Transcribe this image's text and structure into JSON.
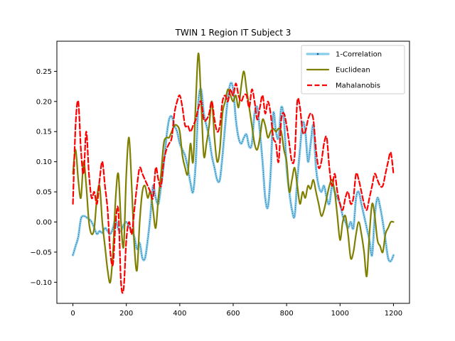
{
  "chart_data": {
    "type": "line",
    "title": "TWIN 1 Region IT Subject 3",
    "xlabel": "",
    "ylabel": "",
    "xlim": [
      -60,
      1260
    ],
    "ylim": [
      -0.135,
      0.3
    ],
    "xticks": [
      0,
      200,
      400,
      600,
      800,
      1000,
      1200
    ],
    "yticks": [
      -0.1,
      -0.05,
      0.0,
      0.05,
      0.1,
      0.15,
      0.2,
      0.25
    ],
    "xtick_labels": [
      "0",
      "200",
      "400",
      "600",
      "800",
      "1000",
      "1200"
    ],
    "ytick_labels": [
      "−0.10",
      "−0.05",
      "0.00",
      "0.05",
      "0.10",
      "0.15",
      "0.20",
      "0.25"
    ],
    "grid": false,
    "legend": "top-right",
    "series": [
      {
        "name": "1-Correlation",
        "color": "#87ceeb",
        "style": "solid-with-markers",
        "x": [
          0,
          10,
          20,
          30,
          40,
          50,
          60,
          70,
          80,
          90,
          100,
          110,
          120,
          130,
          140,
          150,
          160,
          170,
          180,
          190,
          200,
          210,
          220,
          230,
          240,
          250,
          260,
          270,
          280,
          290,
          300,
          310,
          320,
          330,
          340,
          350,
          360,
          370,
          380,
          390,
          400,
          410,
          420,
          430,
          440,
          450,
          460,
          470,
          480,
          490,
          500,
          510,
          520,
          530,
          540,
          550,
          560,
          570,
          580,
          590,
          600,
          610,
          620,
          630,
          640,
          650,
          660,
          670,
          680,
          690,
          700,
          710,
          720,
          730,
          740,
          750,
          760,
          770,
          780,
          790,
          800,
          810,
          820,
          830,
          840,
          850,
          860,
          870,
          880,
          890,
          900,
          910,
          920,
          930,
          940,
          950,
          960,
          970,
          980,
          990,
          1000,
          1010,
          1020,
          1030,
          1040,
          1050,
          1060,
          1070,
          1080,
          1090,
          1100,
          1110,
          1120,
          1130,
          1140,
          1150,
          1160,
          1170,
          1180,
          1190,
          1200
        ],
        "y": [
          -0.055,
          -0.04,
          -0.025,
          0.005,
          0.01,
          0.008,
          0.005,
          0.0,
          -0.01,
          -0.02,
          -0.015,
          -0.018,
          -0.01,
          -0.015,
          -0.02,
          -0.01,
          0.005,
          -0.012,
          -0.015,
          -0.005,
          0.0,
          -0.008,
          -0.015,
          -0.025,
          -0.045,
          -0.035,
          -0.06,
          -0.06,
          -0.03,
          0.01,
          0.06,
          0.04,
          0.03,
          0.06,
          0.095,
          0.14,
          0.17,
          0.175,
          0.16,
          0.15,
          0.13,
          0.12,
          0.11,
          0.09,
          0.065,
          0.05,
          0.1,
          0.2,
          0.22,
          0.18,
          0.16,
          0.14,
          0.11,
          0.09,
          0.07,
          0.07,
          0.11,
          0.16,
          0.205,
          0.23,
          0.22,
          0.17,
          0.14,
          0.13,
          0.14,
          0.145,
          0.125,
          0.13,
          0.18,
          0.19,
          0.15,
          0.1,
          0.04,
          0.025,
          0.08,
          0.18,
          0.15,
          0.14,
          0.19,
          0.17,
          0.09,
          0.05,
          0.02,
          0.01,
          0.07,
          0.12,
          0.165,
          0.15,
          0.1,
          0.13,
          0.16,
          0.09,
          0.06,
          0.05,
          0.06,
          0.04,
          0.03,
          0.06,
          0.05,
          0.04,
          0.03,
          0.01,
          0.0,
          -0.01,
          0.0,
          -0.01,
          0.04,
          0.05,
          0.03,
          0.01,
          -0.01,
          -0.03,
          -0.055,
          0.01,
          0.04,
          0.025,
          0.0,
          -0.03,
          -0.06,
          -0.065,
          -0.055
        ]
      },
      {
        "name": "Euclidean",
        "color": "#808000",
        "style": "solid",
        "x": [
          0,
          10,
          20,
          30,
          40,
          50,
          60,
          70,
          80,
          90,
          100,
          110,
          120,
          130,
          140,
          150,
          160,
          170,
          180,
          190,
          200,
          210,
          220,
          230,
          240,
          250,
          260,
          270,
          280,
          290,
          300,
          310,
          320,
          330,
          340,
          350,
          360,
          370,
          380,
          390,
          400,
          410,
          420,
          430,
          440,
          450,
          460,
          470,
          480,
          490,
          500,
          510,
          520,
          530,
          540,
          550,
          560,
          570,
          580,
          590,
          600,
          610,
          620,
          630,
          640,
          650,
          660,
          670,
          680,
          690,
          700,
          710,
          720,
          730,
          740,
          750,
          760,
          770,
          780,
          790,
          800,
          810,
          820,
          830,
          840,
          850,
          860,
          870,
          880,
          890,
          900,
          910,
          920,
          930,
          940,
          950,
          960,
          970,
          980,
          990,
          1000,
          1010,
          1020,
          1030,
          1040,
          1050,
          1060,
          1070,
          1080,
          1090,
          1100,
          1110,
          1120,
          1130,
          1140,
          1150,
          1160,
          1170,
          1180,
          1190,
          1200
        ],
        "y": [
          0.08,
          0.12,
          0.07,
          0.04,
          0.1,
          0.06,
          0.0,
          -0.02,
          -0.01,
          0.04,
          0.06,
          0.0,
          -0.04,
          -0.08,
          -0.1,
          -0.05,
          0.04,
          0.08,
          0.0,
          -0.04,
          0.08,
          0.14,
          0.06,
          -0.04,
          -0.08,
          0.0,
          0.05,
          0.06,
          0.04,
          0.05,
          0.02,
          -0.01,
          0.04,
          0.08,
          0.13,
          0.14,
          0.14,
          0.15,
          0.16,
          0.16,
          0.15,
          0.11,
          0.09,
          0.08,
          0.13,
          0.1,
          0.2,
          0.28,
          0.2,
          0.11,
          0.13,
          0.16,
          0.2,
          0.14,
          0.1,
          0.12,
          0.18,
          0.2,
          0.22,
          0.21,
          0.2,
          0.21,
          0.19,
          0.225,
          0.25,
          0.22,
          0.19,
          0.16,
          0.13,
          0.12,
          0.14,
          0.17,
          0.16,
          0.14,
          0.15,
          0.155,
          0.15,
          0.155,
          0.15,
          0.12,
          0.1,
          0.05,
          0.07,
          0.09,
          0.06,
          0.03,
          0.05,
          0.04,
          0.06,
          0.055,
          0.07,
          0.05,
          0.03,
          0.01,
          0.02,
          0.04,
          0.06,
          0.07,
          0.05,
          0.01,
          -0.03,
          0.0,
          0.01,
          -0.02,
          -0.06,
          -0.05,
          -0.02,
          0.0,
          -0.02,
          -0.05,
          -0.09,
          -0.02,
          0.03,
          0.01,
          -0.03,
          -0.04,
          -0.05,
          -0.02,
          -0.01,
          0.0,
          0.0
        ]
      },
      {
        "name": "Mahalanobis",
        "color": "#ff0000",
        "style": "dashed",
        "x": [
          0,
          10,
          20,
          30,
          40,
          50,
          60,
          70,
          80,
          90,
          100,
          110,
          120,
          130,
          140,
          150,
          160,
          170,
          180,
          190,
          200,
          210,
          220,
          230,
          240,
          250,
          260,
          270,
          280,
          290,
          300,
          310,
          320,
          330,
          340,
          350,
          360,
          370,
          380,
          390,
          400,
          410,
          420,
          430,
          440,
          450,
          460,
          470,
          480,
          490,
          500,
          510,
          520,
          530,
          540,
          550,
          560,
          570,
          580,
          590,
          600,
          610,
          620,
          630,
          640,
          650,
          660,
          670,
          680,
          690,
          700,
          710,
          720,
          730,
          740,
          750,
          760,
          770,
          780,
          790,
          800,
          810,
          820,
          830,
          840,
          850,
          860,
          870,
          880,
          890,
          900,
          910,
          920,
          930,
          940,
          950,
          960,
          970,
          980,
          990,
          1000,
          1010,
          1020,
          1030,
          1040,
          1050,
          1060,
          1070,
          1080,
          1090,
          1100,
          1110,
          1120,
          1130,
          1140,
          1150,
          1160,
          1170,
          1180,
          1190,
          1200
        ],
        "y": [
          0.03,
          0.16,
          0.2,
          0.12,
          0.08,
          0.15,
          0.08,
          0.04,
          0.05,
          0.03,
          0.07,
          0.1,
          0.06,
          0.02,
          -0.05,
          -0.07,
          0.0,
          0.02,
          -0.1,
          -0.11,
          -0.03,
          0.0,
          -0.02,
          0.02,
          0.06,
          0.09,
          0.08,
          0.07,
          0.06,
          0.05,
          0.04,
          0.09,
          0.07,
          0.06,
          0.1,
          0.12,
          0.13,
          0.14,
          0.18,
          0.2,
          0.21,
          0.19,
          0.16,
          0.16,
          0.15,
          0.16,
          0.17,
          0.19,
          0.2,
          0.17,
          0.17,
          0.18,
          0.2,
          0.17,
          0.15,
          0.16,
          0.2,
          0.21,
          0.2,
          0.22,
          0.21,
          0.23,
          0.21,
          0.2,
          0.21,
          0.21,
          0.19,
          0.22,
          0.2,
          0.17,
          0.19,
          0.21,
          0.18,
          0.2,
          0.18,
          0.14,
          0.13,
          0.1,
          0.17,
          0.18,
          0.16,
          0.13,
          0.1,
          0.11,
          0.2,
          0.19,
          0.15,
          0.15,
          0.17,
          0.18,
          0.17,
          0.12,
          0.09,
          0.1,
          0.13,
          0.14,
          0.09,
          0.06,
          0.08,
          0.05,
          0.03,
          0.02,
          0.04,
          0.05,
          0.03,
          0.04,
          0.08,
          0.07,
          0.05,
          0.03,
          0.02,
          0.04,
          0.06,
          0.08,
          0.07,
          0.06,
          0.06,
          0.08,
          0.1,
          0.115,
          0.08
        ]
      }
    ]
  }
}
